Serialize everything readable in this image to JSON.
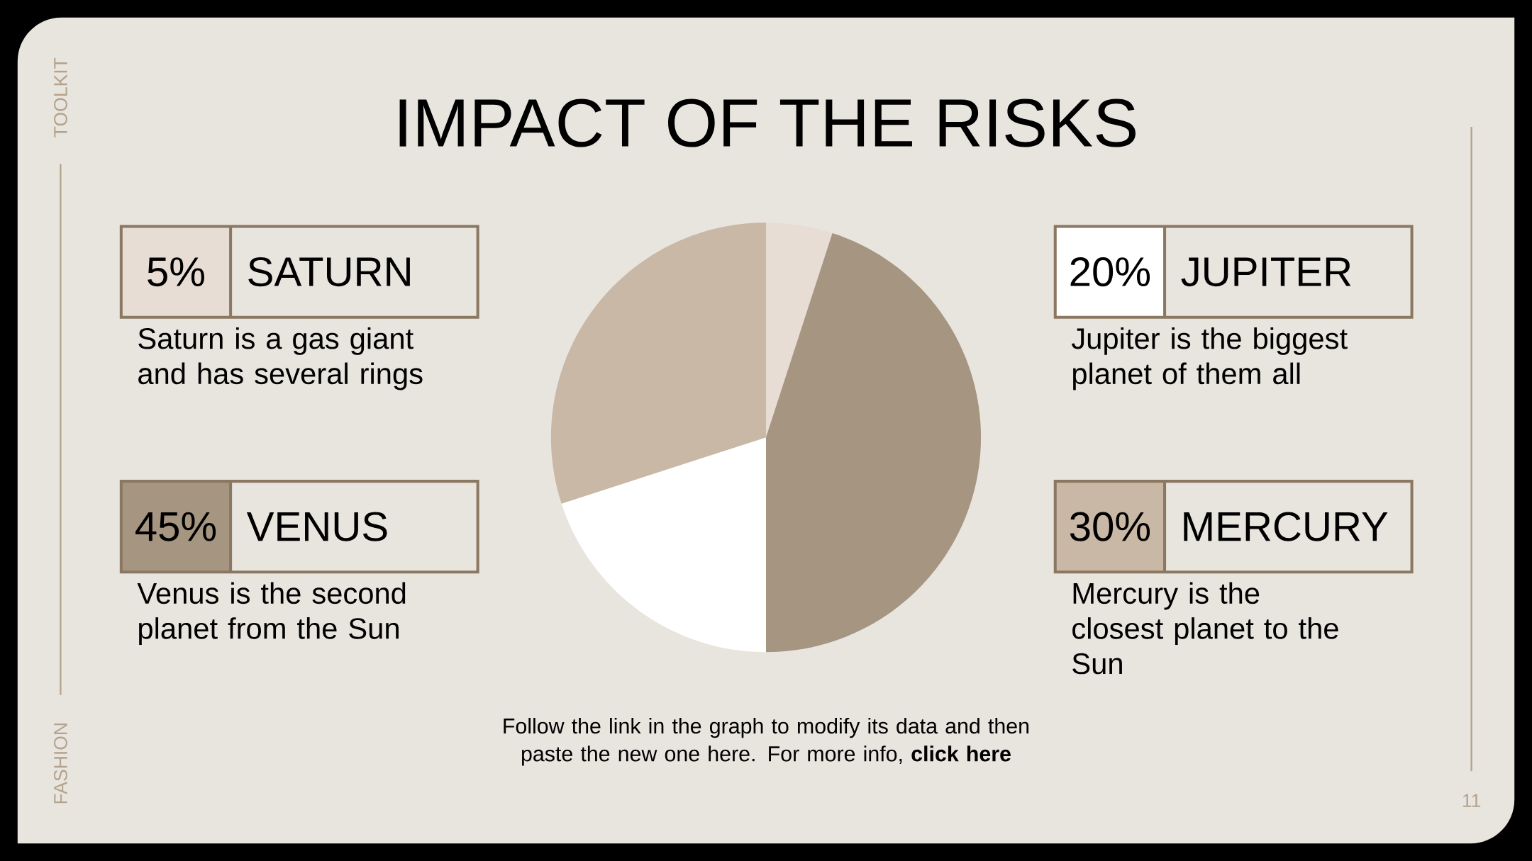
{
  "chart_data": {
    "type": "pie",
    "title": "IMPACT OF THE RISKS",
    "categories": [
      "SATURN",
      "VENUS",
      "JUPITER",
      "MERCURY"
    ],
    "values": [
      5,
      45,
      20,
      30
    ],
    "legend": "left",
    "value_labels": [
      "5%",
      "45%",
      "20%",
      "30%"
    ],
    "colors": [
      "#e8ddd4",
      "#a69580",
      "#ffffff",
      "#c9b8a6"
    ],
    "annotations": [
      "Saturn is a gas giant and has several rings",
      "Venus is the second planet from the Sun",
      "Jupiter is the biggest planet of them all",
      "Mercury is the closest planet to the Sun",
      "Follow the link in the graph to modify its data and then paste the new one here. For more info, **click here**",
      "TOOLKIT",
      "FASHION",
      "11"
    ]
  }
}
